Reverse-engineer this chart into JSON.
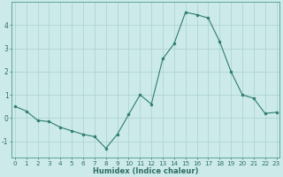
{
  "xlabel": "Humidex (Indice chaleur)",
  "x": [
    0,
    1,
    2,
    3,
    4,
    5,
    6,
    7,
    8,
    9,
    10,
    11,
    12,
    13,
    14,
    15,
    16,
    17,
    18,
    19,
    20,
    21,
    22,
    23
  ],
  "y": [
    0.5,
    0.3,
    -0.1,
    -0.15,
    -0.4,
    -0.55,
    -0.7,
    -0.8,
    -1.3,
    -0.7,
    0.15,
    1.0,
    0.6,
    2.55,
    3.2,
    4.55,
    4.45,
    4.3,
    3.3,
    2.0,
    1.0,
    0.85,
    0.2,
    0.25
  ],
  "line_color": "#2e7d6e",
  "marker": "o",
  "markersize": 2.0,
  "bg_color": "#cceaea",
  "grid_color": "#aad0d0",
  "axis_color": "#4a9a8a",
  "tick_color": "#2e6e60",
  "label_color": "#2e6e60",
  "ylim": [
    -1.7,
    5.0
  ],
  "yticks": [
    -1,
    0,
    1,
    2,
    3,
    4
  ],
  "xlim": [
    -0.3,
    23.3
  ],
  "xticks": [
    0,
    1,
    2,
    3,
    4,
    5,
    6,
    7,
    8,
    9,
    10,
    11,
    12,
    13,
    14,
    15,
    16,
    17,
    18,
    19,
    20,
    21,
    22,
    23
  ],
  "tick_fontsize": 5.2,
  "xlabel_fontsize": 6.0
}
